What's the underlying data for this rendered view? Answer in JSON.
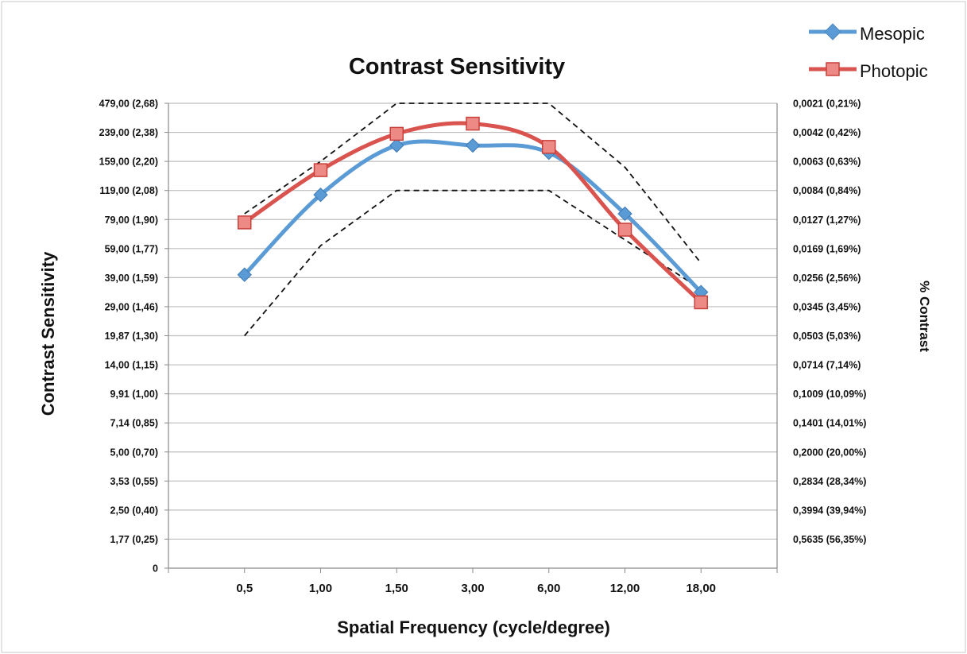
{
  "chart_data": {
    "type": "line",
    "title": "Contrast Sensitivity",
    "xlabel": "Spatial Frequency (cycle/degree)",
    "ylabel": "Contrast Sensitivity",
    "y2label": "% Contrast",
    "categories": [
      "0,5",
      "1,00",
      "1,50",
      "3,00",
      "6,00",
      "12,00",
      "18,00"
    ],
    "y_ticks_left": [
      "0",
      "1,77 (0,25)",
      "2,50 (0,40)",
      "3,53 (0,55)",
      "5,00 (0,70)",
      "7,14 (0,85)",
      "9,91 (1,00)",
      "14,00 (1,15)",
      "19,87 (1,30)",
      "29,00 (1,46)",
      "39,00 (1,59)",
      "59,00 (1,77)",
      "79,00 (1,90)",
      "119,00 (2,08)",
      "159,00 (2,20)",
      "239,00 (2,38)",
      "479,00 (2,68)"
    ],
    "y_ticks_right": [
      "0,5635 (56,35%)",
      "0,3994 (39,94%)",
      "0,2834 (28,34%)",
      "0,2000 (20,00%)",
      "0,1401 (14,01%)",
      "0,1009 (10,09%)",
      "0,0714 (7,14%)",
      "0,0503 (5,03%)",
      "0,0345 (3,45%)",
      "0,0256 (2,56%)",
      "0,0169 (1,69%)",
      "0,0127 (1,27%)",
      "0,0084 (0,84%)",
      "0,0063 (0,63%)",
      "0,0042 (0,42%)",
      "0,0021 (0,21%)"
    ],
    "ylim": [
      0,
      16
    ],
    "series": [
      {
        "name": "Mesopic",
        "color": "#5b9bd5",
        "marker": "diamond",
        "values": [
          10.1,
          12.85,
          14.55,
          14.55,
          14.3,
          12.2,
          9.5
        ]
      },
      {
        "name": "Photopic",
        "color": "#d9534f",
        "marker": "square",
        "values": [
          11.9,
          13.7,
          14.95,
          15.3,
          14.5,
          11.65,
          9.15
        ]
      }
    ],
    "normal_range": {
      "style": "dashed",
      "upper": [
        12.2,
        14.0,
        16.0,
        16.0,
        16.0,
        13.8,
        10.5
      ],
      "lower": [
        8.0,
        11.1,
        13.0,
        13.0,
        13.0,
        11.3,
        9.6
      ]
    },
    "legend_position": "top-right",
    "grid": true
  }
}
